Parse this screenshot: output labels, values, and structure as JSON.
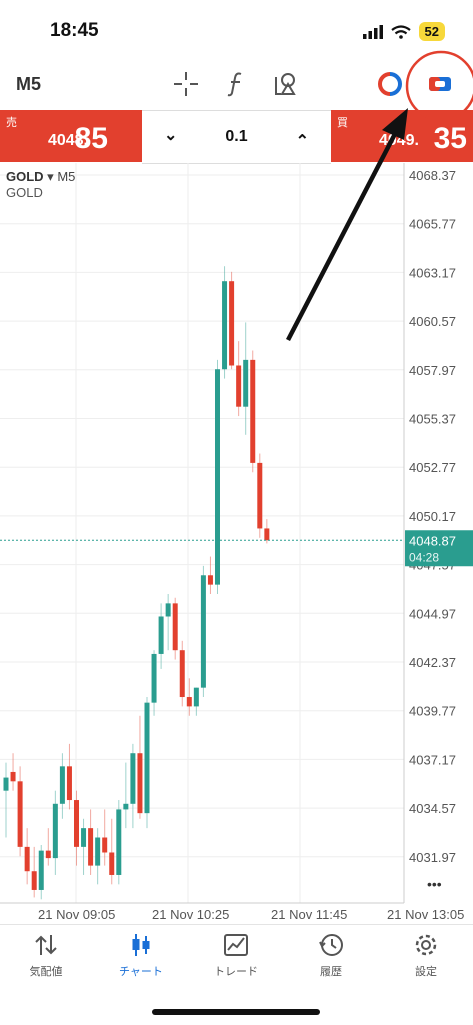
{
  "status": {
    "time": "18:45",
    "battery": "52"
  },
  "toolbar": {
    "timeframe": "M5",
    "icons": [
      "crosshair-icon",
      "function-icon",
      "objects-icon",
      "one-click-trading-icon",
      "chart-settings-icon"
    ]
  },
  "trade": {
    "sell_label": "売",
    "sell_price_main": "4048.",
    "sell_price_big": "85",
    "buy_label": "買",
    "buy_price_main": "4049.",
    "buy_price_big": "35",
    "lot": "0.1",
    "decrease": "⌄",
    "increase": "⌃"
  },
  "chart": {
    "symbol": "GOLD",
    "timeframe": "M5",
    "description": "GOLD",
    "current_price": "4048.87",
    "countdown": "04:28",
    "price_ticks": [
      "4068.37",
      "4065.77",
      "4063.17",
      "4060.57",
      "4057.97",
      "4055.37",
      "4052.77",
      "4050.17",
      "4047.57",
      "4044.97",
      "4042.37",
      "4039.77",
      "4037.17",
      "4034.57",
      "4031.97"
    ],
    "time_ticks": [
      "21 Nov 09:05",
      "21 Nov 10:25",
      "21 Nov 11:45",
      "21 Nov 13:05"
    ],
    "more": "•••"
  },
  "chart_data": {
    "type": "candlestick",
    "ylim": [
      4029.5,
      4069.5
    ],
    "candles": [
      {
        "o": 4035.5,
        "h": 4037.0,
        "l": 4033.0,
        "c": 4036.2
      },
      {
        "o": 4036.5,
        "h": 4037.5,
        "l": 4035.5,
        "c": 4036.0
      },
      {
        "o": 4036.0,
        "h": 4036.8,
        "l": 4032.0,
        "c": 4032.5
      },
      {
        "o": 4032.5,
        "h": 4033.5,
        "l": 4030.5,
        "c": 4031.2
      },
      {
        "o": 4031.2,
        "h": 4032.5,
        "l": 4029.8,
        "c": 4030.2
      },
      {
        "o": 4030.2,
        "h": 4032.6,
        "l": 4029.7,
        "c": 4032.3
      },
      {
        "o": 4032.3,
        "h": 4033.5,
        "l": 4031.5,
        "c": 4031.9
      },
      {
        "o": 4031.9,
        "h": 4035.5,
        "l": 4031.0,
        "c": 4034.8
      },
      {
        "o": 4034.8,
        "h": 4037.5,
        "l": 4034.0,
        "c": 4036.8
      },
      {
        "o": 4036.8,
        "h": 4038.0,
        "l": 4034.5,
        "c": 4035.0
      },
      {
        "o": 4035.0,
        "h": 4035.5,
        "l": 4031.5,
        "c": 4032.5
      },
      {
        "o": 4032.5,
        "h": 4034.0,
        "l": 4031.0,
        "c": 4033.5
      },
      {
        "o": 4033.5,
        "h": 4034.5,
        "l": 4031.0,
        "c": 4031.5
      },
      {
        "o": 4031.5,
        "h": 4033.5,
        "l": 4030.5,
        "c": 4033.0
      },
      {
        "o": 4033.0,
        "h": 4034.5,
        "l": 4031.5,
        "c": 4032.2
      },
      {
        "o": 4032.2,
        "h": 4034.0,
        "l": 4030.5,
        "c": 4031.0
      },
      {
        "o": 4031.0,
        "h": 4035.0,
        "l": 4030.5,
        "c": 4034.5
      },
      {
        "o": 4034.5,
        "h": 4037.0,
        "l": 4033.5,
        "c": 4034.8
      },
      {
        "o": 4034.8,
        "h": 4038.0,
        "l": 4033.5,
        "c": 4037.5
      },
      {
        "o": 4037.5,
        "h": 4039.5,
        "l": 4034.0,
        "c": 4034.3
      },
      {
        "o": 4034.3,
        "h": 4040.5,
        "l": 4033.5,
        "c": 4040.2
      },
      {
        "o": 4040.2,
        "h": 4043.0,
        "l": 4039.5,
        "c": 4042.8
      },
      {
        "o": 4042.8,
        "h": 4045.5,
        "l": 4042.0,
        "c": 4044.8
      },
      {
        "o": 4044.8,
        "h": 4046.0,
        "l": 4043.0,
        "c": 4045.5
      },
      {
        "o": 4045.5,
        "h": 4045.8,
        "l": 4042.5,
        "c": 4043.0
      },
      {
        "o": 4043.0,
        "h": 4043.5,
        "l": 4040.0,
        "c": 4040.5
      },
      {
        "o": 4040.5,
        "h": 4041.5,
        "l": 4039.5,
        "c": 4040.0
      },
      {
        "o": 4040.0,
        "h": 4041.0,
        "l": 4039.5,
        "c": 4041.0
      },
      {
        "o": 4041.0,
        "h": 4047.5,
        "l": 4040.5,
        "c": 4047.0
      },
      {
        "o": 4047.0,
        "h": 4048.0,
        "l": 4046.0,
        "c": 4046.5
      },
      {
        "o": 4046.5,
        "h": 4058.5,
        "l": 4046.0,
        "c": 4058.0
      },
      {
        "o": 4058.0,
        "h": 4063.5,
        "l": 4057.5,
        "c": 4062.7
      },
      {
        "o": 4062.7,
        "h": 4063.2,
        "l": 4058.0,
        "c": 4058.2
      },
      {
        "o": 4058.2,
        "h": 4059.5,
        "l": 4055.5,
        "c": 4056.0
      },
      {
        "o": 4056.0,
        "h": 4060.5,
        "l": 4054.5,
        "c": 4058.5
      },
      {
        "o": 4058.5,
        "h": 4059.0,
        "l": 4052.5,
        "c": 4053.0
      },
      {
        "o": 4053.0,
        "h": 4053.5,
        "l": 4049.0,
        "c": 4049.5
      },
      {
        "o": 4049.5,
        "h": 4050.0,
        "l": 4048.7,
        "c": 4048.87
      }
    ]
  },
  "nav": [
    {
      "label": "気配値",
      "icon": "quotes-icon"
    },
    {
      "label": "チャート",
      "icon": "chart-icon",
      "active": true
    },
    {
      "label": "トレード",
      "icon": "trade-icon"
    },
    {
      "label": "履歴",
      "icon": "history-icon"
    },
    {
      "label": "設定",
      "icon": "settings-icon"
    }
  ],
  "colors": {
    "bull": "#2a9d8f",
    "bear": "#e2402e",
    "accent": "#1a6fd6",
    "annotation": "#e2402e"
  }
}
